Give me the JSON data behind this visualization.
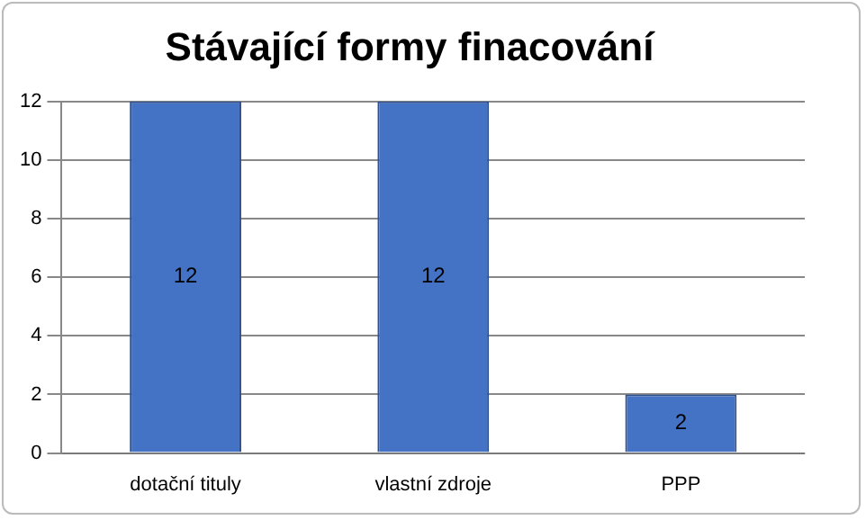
{
  "chart_data": {
    "type": "bar",
    "title": "Stávající formy finacování",
    "categories": [
      "dotační tituly",
      "vlastní zdroje",
      "PPP"
    ],
    "values": [
      12,
      12,
      2
    ],
    "color": "#4472c4",
    "ylim": [
      0,
      12
    ],
    "yticks": [
      0,
      2,
      4,
      6,
      8,
      10,
      12
    ],
    "grid": "y",
    "data_labels": true
  }
}
